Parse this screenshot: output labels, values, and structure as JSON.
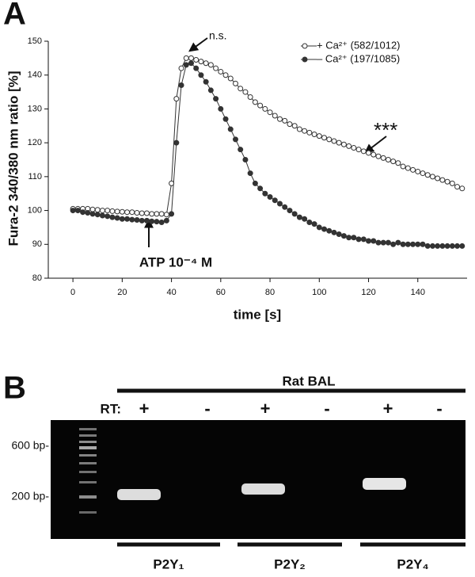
{
  "panel_labels": [
    "A",
    "B"
  ],
  "chart_data": {
    "type": "line",
    "xlabel": "time [s]",
    "ylabel": "Fura-2 340/380 nm ratio [%]",
    "annotations": [
      "n.s.",
      "***",
      "ATP 10⁻⁴ M"
    ],
    "xlim": [
      -10,
      160
    ],
    "xticks": [
      0,
      20,
      40,
      60,
      80,
      100,
      120,
      140
    ],
    "ylim": [
      80,
      150
    ],
    "yticks": [
      80,
      90,
      100,
      110,
      120,
      130,
      140,
      150
    ],
    "legend": "upper right",
    "x": [
      0,
      2,
      4,
      6,
      8,
      10,
      12,
      14,
      16,
      18,
      20,
      22,
      24,
      26,
      28,
      30,
      32,
      34,
      36,
      38,
      40,
      42,
      44,
      46,
      48,
      50,
      52,
      54,
      56,
      58,
      60,
      62,
      64,
      66,
      68,
      70,
      72,
      74,
      76,
      78,
      80,
      82,
      84,
      86,
      88,
      90,
      92,
      94,
      96,
      98,
      100,
      102,
      104,
      106,
      108,
      110,
      112,
      114,
      116,
      118,
      120,
      122,
      124,
      126,
      128,
      130,
      132,
      134,
      136,
      138,
      140,
      142,
      144,
      146,
      148,
      150,
      152,
      154,
      156,
      158
    ],
    "series": [
      {
        "name": "+ Ca²⁺ (582/1012)",
        "color": "#333333",
        "marker": "open",
        "values": [
          100.5,
          100.5,
          100.5,
          100.5,
          100.3,
          100.2,
          100,
          100,
          99.8,
          99.7,
          99.6,
          99.5,
          99.5,
          99.3,
          99.2,
          99.2,
          99,
          99,
          99,
          98.8,
          108,
          133,
          142,
          145,
          145,
          144.5,
          144,
          143.5,
          143,
          142,
          141,
          140,
          139,
          137.5,
          136,
          135,
          133.5,
          132,
          131,
          130,
          129,
          128,
          127,
          126.5,
          125.5,
          125,
          124,
          123.5,
          123,
          122.5,
          122,
          121.5,
          121,
          120.5,
          120,
          119.5,
          119,
          118.5,
          118,
          117.5,
          117,
          116.5,
          116,
          115.5,
          115,
          114.5,
          114,
          113,
          112.5,
          112,
          111.5,
          111,
          110.5,
          110,
          109.5,
          109,
          108.5,
          108,
          107,
          106.5
        ]
      },
      {
        "name": "– Ca²⁺ (197/1085)",
        "color": "#333333",
        "marker": "filled",
        "values": [
          100,
          100,
          99.5,
          99.3,
          99,
          98.8,
          98.5,
          98.3,
          98,
          97.8,
          97.5,
          97.5,
          97.3,
          97.2,
          97,
          97,
          96.8,
          96.7,
          96.5,
          97,
          99,
          120,
          137,
          143,
          143.5,
          142,
          140,
          138,
          135.5,
          133,
          130,
          127,
          124,
          121,
          118,
          115,
          111,
          108,
          106.5,
          105,
          104,
          103,
          102,
          101,
          100,
          99,
          98,
          97.5,
          96.5,
          96,
          95,
          94.5,
          94,
          93.5,
          93,
          92.5,
          92,
          92,
          91.5,
          91.5,
          91,
          91,
          90.5,
          90.5,
          90.5,
          90,
          90.5,
          90,
          90,
          90,
          90,
          90,
          89.5,
          89.5,
          89.5,
          89.5,
          89.5,
          89.5,
          89.5,
          89.5
        ]
      }
    ]
  },
  "gel": {
    "title": "Rat BAL",
    "rt_label": "RT:",
    "lanes": [
      "+",
      "-",
      "+",
      "-",
      "+",
      "-"
    ],
    "markers": [
      "600 bp-",
      "200 bp-"
    ],
    "groups": [
      "P2Y₁",
      "P2Y₂",
      "P2Y₄"
    ]
  }
}
